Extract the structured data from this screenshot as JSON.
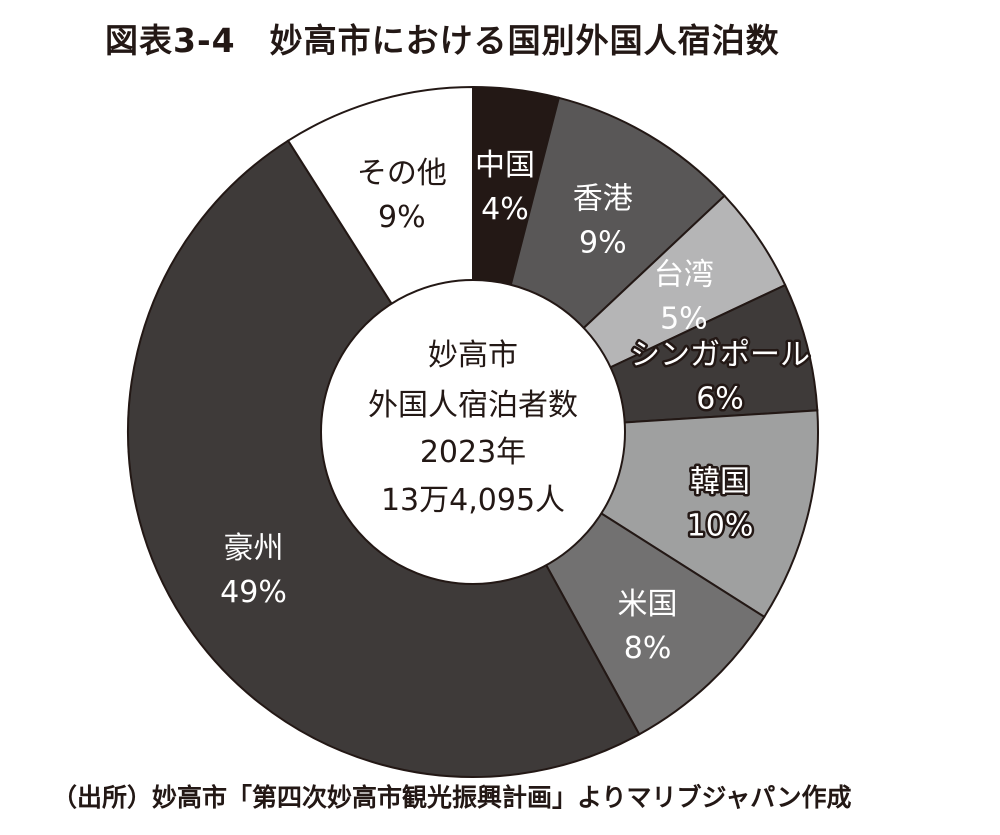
{
  "title": "図表3-4　妙高市における国別外国人宿泊数",
  "source": "（出所）妙高市「第四次妙高市観光振興計画」よりマリブジャパン作成",
  "center_label": [
    "妙高市",
    "外国人宿泊者数",
    "2023年",
    "13万4,095人"
  ],
  "chart_data": {
    "type": "pie",
    "title": "図表3-4　妙高市における国別外国人宿泊数",
    "donut": true,
    "categories": [
      "中国",
      "香港",
      "台湾",
      "シンガポール",
      "韓国",
      "米国",
      "豪州",
      "その他"
    ],
    "values": [
      4,
      9,
      5,
      6,
      10,
      8,
      49,
      9
    ],
    "value_labels": [
      "4%",
      "9%",
      "5%",
      "6%",
      "10%",
      "8%",
      "49%",
      "9%"
    ],
    "unit": "%",
    "colors": [
      "#231815",
      "#595757",
      "#b5b5b6",
      "#3e3a39",
      "#9fa0a0",
      "#727171",
      "#3e3a39",
      "#ffffff"
    ],
    "label_colors": [
      "#ffffff",
      "#ffffff",
      "#ffffff",
      "#ffffff",
      "#ffffff",
      "#ffffff",
      "#ffffff",
      "#231815"
    ],
    "outlined_labels": [
      false,
      false,
      false,
      true,
      true,
      false,
      false,
      false
    ],
    "start_angle_deg": 0,
    "direction": "clockwise"
  }
}
